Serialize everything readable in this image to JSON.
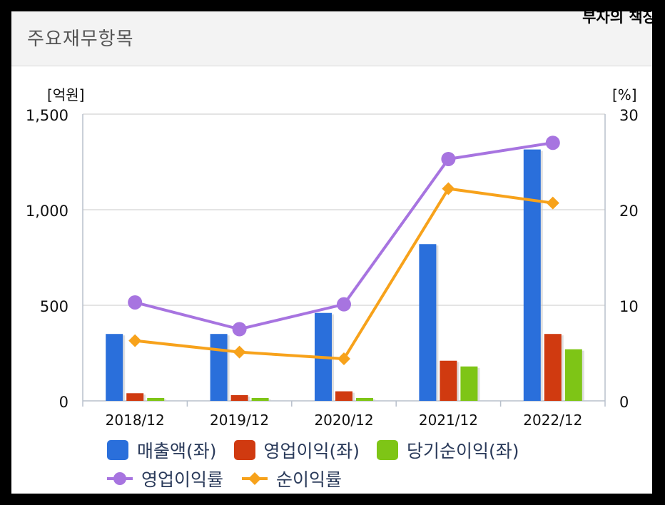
{
  "header": {
    "title": "주요재무항목"
  },
  "watermark": "부자의 책장",
  "chart_data": {
    "type": "bar",
    "categories": [
      "2018/12",
      "2019/12",
      "2020/12",
      "2021/12",
      "2022/12"
    ],
    "left_axis": {
      "unit_label": "[억원]",
      "range": [
        0,
        1500
      ],
      "ticks": [
        0,
        500,
        1000,
        1500
      ],
      "tick_labels": [
        "0",
        "500",
        "1,000",
        "1,500"
      ]
    },
    "right_axis": {
      "unit_label": "[%]",
      "range": [
        0,
        30
      ],
      "ticks": [
        0,
        10,
        20,
        30
      ],
      "tick_labels": [
        "0",
        "10",
        "20",
        "30"
      ]
    },
    "grid": true,
    "bar_series": [
      {
        "name": "매출액(좌)",
        "color": "#2a6fdb",
        "values": [
          350,
          350,
          460,
          820,
          1315
        ]
      },
      {
        "name": "영업이익(좌)",
        "color": "#d03a10",
        "values": [
          40,
          30,
          50,
          210,
          350
        ]
      },
      {
        "name": "당기순이익(좌)",
        "color": "#7ec516",
        "values": [
          15,
          15,
          15,
          180,
          270
        ]
      }
    ],
    "line_series": [
      {
        "name": "영업이익률",
        "color": "#a774e0",
        "marker": "circle",
        "values": [
          10.3,
          7.5,
          10.1,
          25.3,
          27.0
        ]
      },
      {
        "name": "순이익률",
        "color": "#f7a21b",
        "marker": "diamond",
        "values": [
          6.3,
          5.1,
          4.4,
          22.2,
          20.7
        ]
      }
    ]
  }
}
